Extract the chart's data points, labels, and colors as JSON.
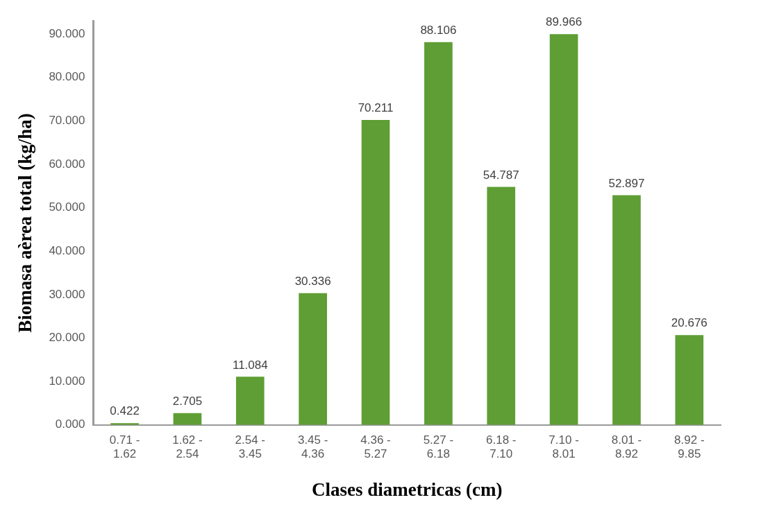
{
  "chart_data": {
    "type": "bar",
    "xlabel": "Clases diametricas (cm)",
    "ylabel": "Biomasa aèrea total (kg/ha)",
    "categories": [
      "0.71 - 1.62",
      "1.62 - 2.54",
      "2.54 - 3.45",
      "3.45 - 4.36",
      "4.36 - 5.27",
      "5.27 - 6.18",
      "6.18 - 7.10",
      "7.10 - 8.01",
      "8.01 - 8.92",
      "8.92 - 9.85"
    ],
    "values": [
      0.422,
      2.705,
      11.084,
      30.336,
      70.211,
      88.106,
      54.787,
      89.966,
      52.897,
      20.676
    ],
    "color": "#5e9e34",
    "ylim": [
      0,
      93
    ],
    "yticks": [
      {
        "value": 0,
        "label": "0.000"
      },
      {
        "value": 10,
        "label": "10.000"
      },
      {
        "value": 20,
        "label": "20.000"
      },
      {
        "value": 30,
        "label": "30.000"
      },
      {
        "value": 40,
        "label": "40.000"
      },
      {
        "value": 50,
        "label": "50.000"
      },
      {
        "value": 60,
        "label": "60.000"
      },
      {
        "value": 70,
        "label": "70.000"
      },
      {
        "value": 80,
        "label": "80.000"
      },
      {
        "value": 90,
        "label": "90.000"
      }
    ],
    "data_labels": true,
    "grid": false,
    "legend": false
  }
}
